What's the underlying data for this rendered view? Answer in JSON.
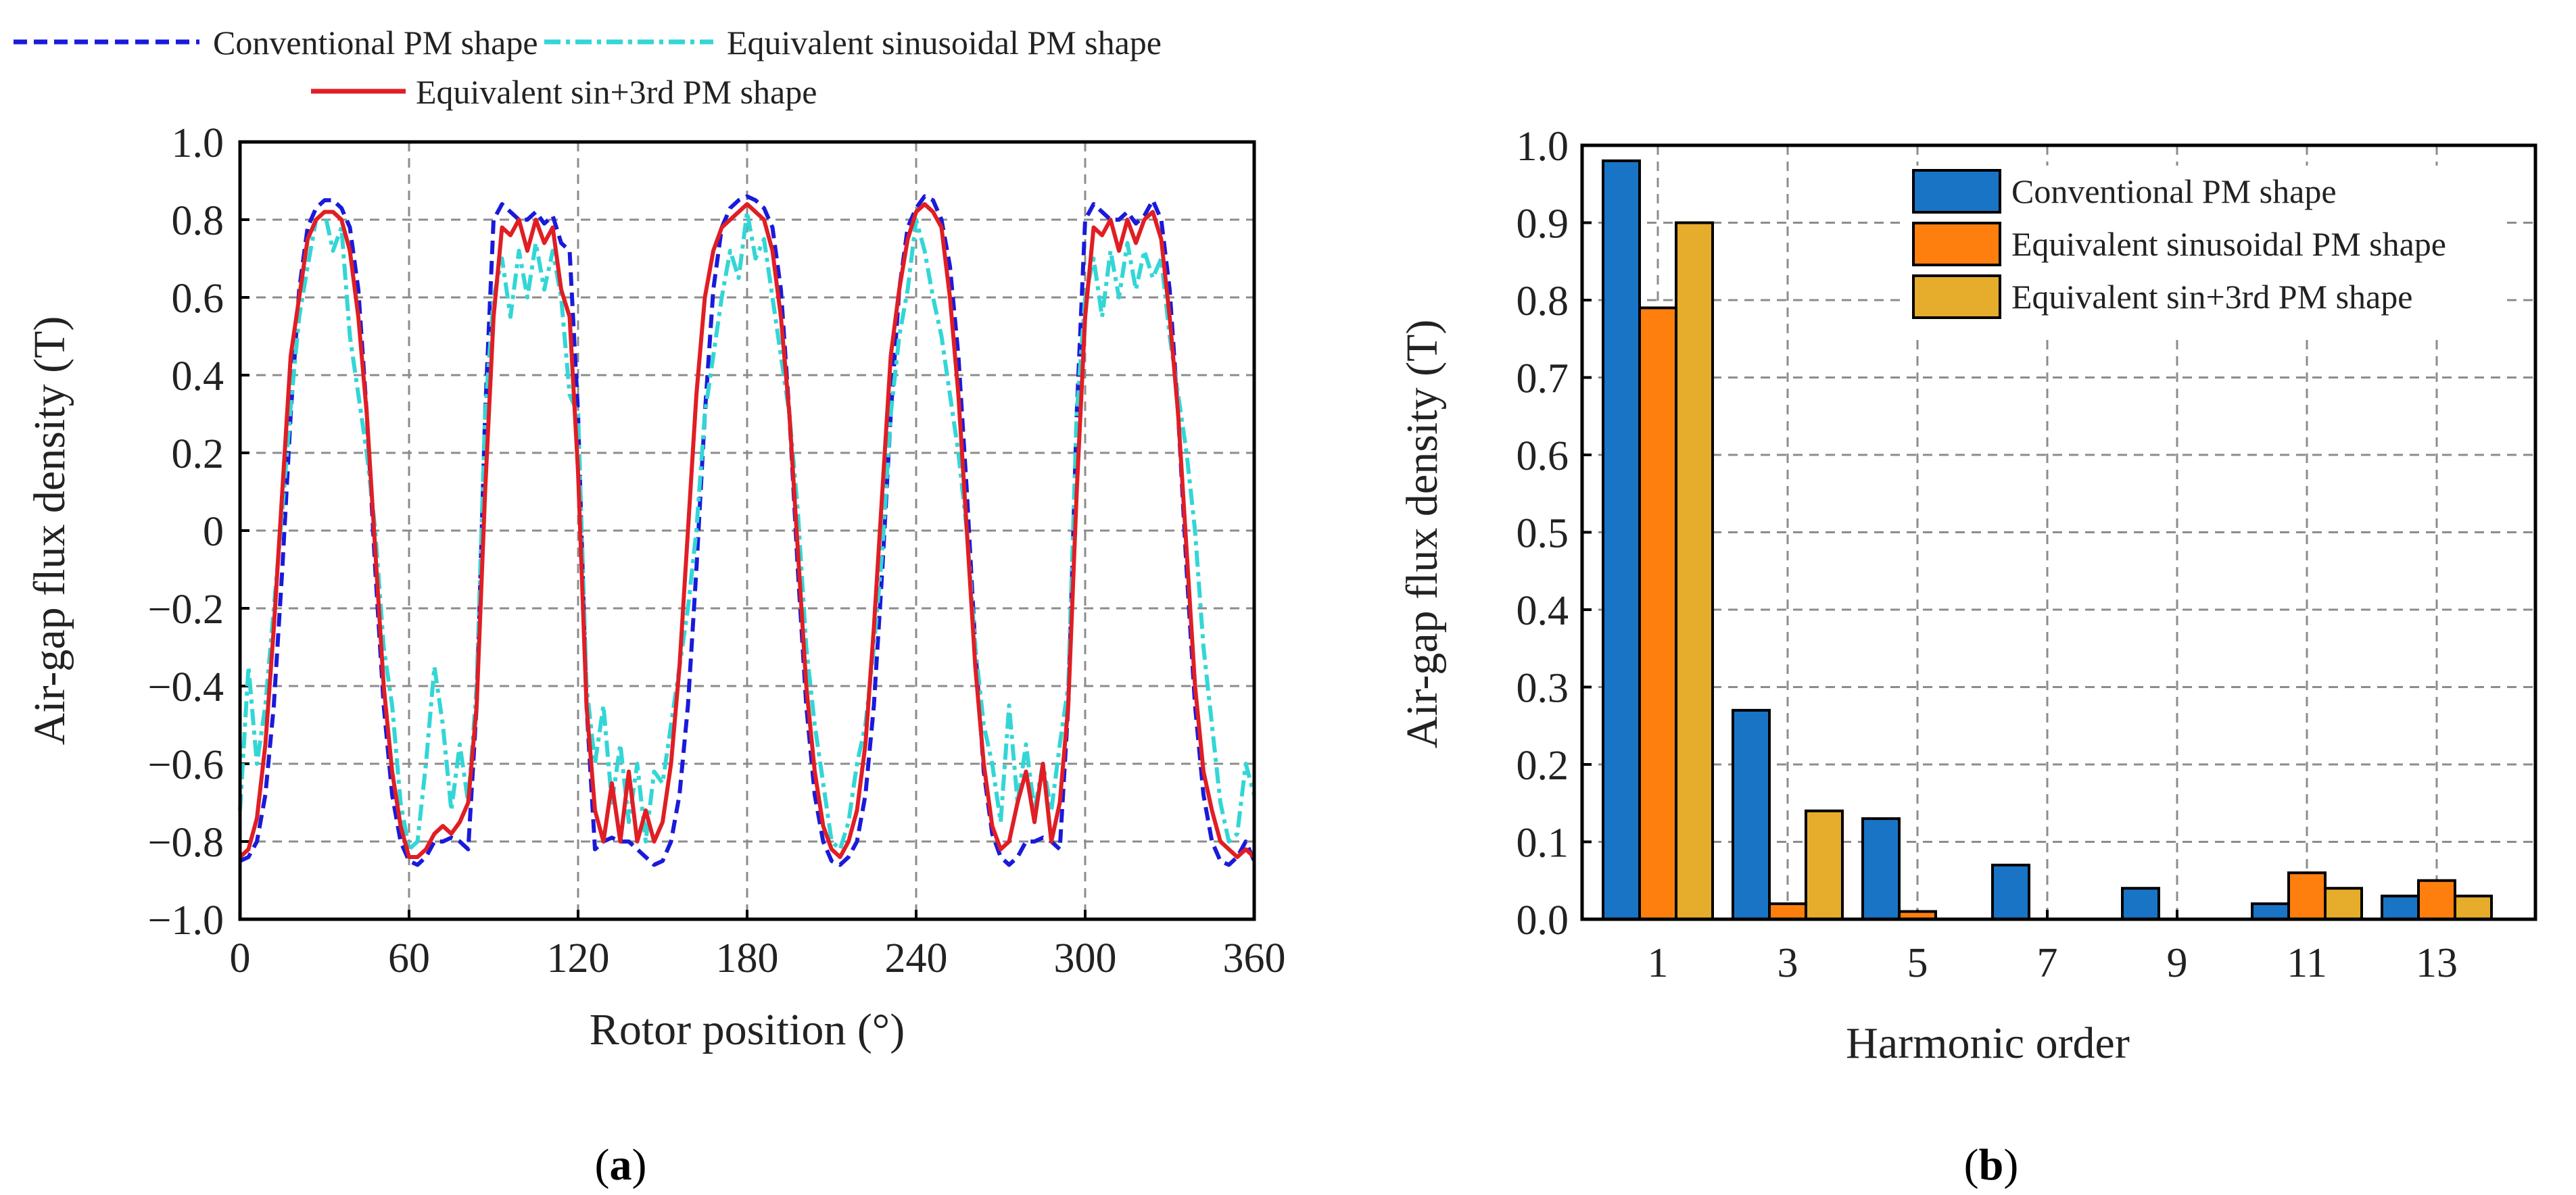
{
  "figure": {
    "panel_a_label": "(a)",
    "panel_b_label": "(b)",
    "panel_a_letter": "a",
    "panel_b_letter": "b"
  },
  "colors": {
    "conventional_a": "#1a1adb",
    "sinusoidal_a": "#33d6d6",
    "sin3rd_a": "#e01e24",
    "conventional_b": "#1a74c6",
    "sinusoidal_b": "#ff7f0e",
    "sin3rd_b": "#e6ac2b",
    "grid": "#8c8c8c"
  },
  "chart_data": [
    {
      "type": "line",
      "title": "",
      "xlabel": "Rotor position (°)",
      "ylabel": "Air-gap flux density (T)",
      "xlim": [
        0,
        360
      ],
      "ylim": [
        -1.0,
        1.0
      ],
      "xticks": [
        0,
        60,
        120,
        180,
        240,
        300,
        360
      ],
      "xtick_labels": [
        "0",
        "60",
        "120",
        "180",
        "240",
        "300",
        "360"
      ],
      "yticks": [
        1.0,
        0.8,
        0.6,
        0.4,
        0.2,
        0,
        -0.2,
        -0.4,
        -0.6,
        -0.8,
        -1.0
      ],
      "ytick_labels": [
        "1.0",
        "0.8",
        "0.6",
        "0.4",
        "0.2",
        "0",
        "−0.2",
        "−0.4",
        "−0.6",
        "−0.8",
        "−1.0"
      ],
      "grid": true,
      "legend_position": "top-outside",
      "series": [
        {
          "name": "Conventional PM shape",
          "style": "dashed",
          "x": [
            0,
            3,
            6,
            9,
            12,
            15,
            18,
            21,
            24,
            27,
            30,
            33,
            36,
            39,
            42,
            45,
            48,
            51,
            54,
            57,
            60,
            63,
            66,
            69,
            72,
            75,
            78,
            81,
            84,
            87,
            90,
            93,
            96,
            99,
            102,
            105,
            108,
            111,
            114,
            117,
            120,
            123,
            126,
            129,
            132,
            135,
            138,
            141,
            144,
            147,
            150,
            153,
            156,
            159,
            162,
            165,
            168,
            171,
            174,
            177,
            180,
            183,
            186,
            189,
            192,
            195,
            198,
            201,
            204,
            207,
            210,
            213,
            216,
            219,
            222,
            225,
            228,
            231,
            234,
            237,
            240,
            243,
            246,
            249,
            252,
            255,
            258,
            261,
            264,
            267,
            270,
            273,
            276,
            279,
            282,
            285,
            288,
            291,
            294,
            297,
            300,
            303,
            306,
            309,
            312,
            315,
            318,
            321,
            324,
            327,
            330,
            333,
            336,
            339,
            342,
            345,
            348,
            351,
            354,
            357,
            360
          ],
          "y": [
            -0.85,
            -0.84,
            -0.8,
            -0.68,
            -0.45,
            -0.1,
            0.3,
            0.62,
            0.78,
            0.83,
            0.85,
            0.85,
            0.83,
            0.78,
            0.62,
            0.3,
            -0.1,
            -0.45,
            -0.68,
            -0.8,
            -0.85,
            -0.86,
            -0.84,
            -0.8,
            -0.8,
            -0.79,
            -0.8,
            -0.82,
            -0.45,
            0.3,
            0.8,
            0.84,
            0.82,
            0.8,
            0.8,
            0.82,
            0.79,
            0.81,
            0.74,
            0.72,
            0.3,
            -0.45,
            -0.82,
            -0.8,
            -0.79,
            -0.8,
            -0.8,
            -0.82,
            -0.84,
            -0.86,
            -0.85,
            -0.8,
            -0.68,
            -0.45,
            -0.1,
            0.3,
            0.62,
            0.78,
            0.83,
            0.85,
            0.86,
            0.85,
            0.83,
            0.78,
            0.62,
            0.3,
            -0.1,
            -0.45,
            -0.68,
            -0.8,
            -0.85,
            -0.86,
            -0.84,
            -0.8,
            -0.68,
            -0.45,
            -0.1,
            0.3,
            0.62,
            0.78,
            0.83,
            0.86,
            0.85,
            0.8,
            0.68,
            0.45,
            0.1,
            -0.3,
            -0.62,
            -0.78,
            -0.84,
            -0.86,
            -0.84,
            -0.8,
            -0.8,
            -0.79,
            -0.8,
            -0.82,
            -0.45,
            0.3,
            0.8,
            0.84,
            0.82,
            0.8,
            0.8,
            0.82,
            0.79,
            0.81,
            0.85,
            0.8,
            0.62,
            0.3,
            -0.1,
            -0.45,
            -0.68,
            -0.8,
            -0.85,
            -0.86,
            -0.84,
            -0.8,
            -0.85
          ]
        },
        {
          "name": "Equivalent sinusoidal PM shape",
          "style": "dash-dot",
          "x": [
            0,
            3,
            6,
            9,
            12,
            15,
            18,
            21,
            24,
            27,
            30,
            33,
            36,
            39,
            42,
            45,
            48,
            51,
            54,
            57,
            60,
            63,
            66,
            69,
            72,
            75,
            78,
            81,
            84,
            87,
            90,
            93,
            96,
            99,
            102,
            105,
            108,
            111,
            114,
            117,
            120,
            123,
            126,
            129,
            132,
            135,
            138,
            141,
            144,
            147,
            150,
            153,
            156,
            159,
            162,
            165,
            168,
            171,
            174,
            177,
            180,
            183,
            186,
            189,
            192,
            195,
            198,
            201,
            204,
            207,
            210,
            213,
            216,
            219,
            222,
            225,
            228,
            231,
            234,
            237,
            240,
            243,
            246,
            249,
            252,
            255,
            258,
            261,
            264,
            267,
            270,
            273,
            276,
            279,
            282,
            285,
            288,
            291,
            294,
            297,
            300,
            303,
            306,
            309,
            312,
            315,
            318,
            321,
            324,
            327,
            330,
            333,
            336,
            339,
            342,
            345,
            348,
            351,
            354,
            357,
            360
          ],
          "y": [
            -0.72,
            -0.35,
            -0.6,
            -0.45,
            -0.2,
            0.05,
            0.32,
            0.55,
            0.68,
            0.8,
            0.82,
            0.72,
            0.78,
            0.5,
            0.35,
            0.2,
            0.0,
            -0.3,
            -0.45,
            -0.7,
            -0.82,
            -0.8,
            -0.6,
            -0.35,
            -0.5,
            -0.72,
            -0.55,
            -0.7,
            -0.4,
            0.3,
            0.6,
            0.7,
            0.55,
            0.72,
            0.6,
            0.74,
            0.62,
            0.72,
            0.6,
            0.35,
            0.3,
            -0.4,
            -0.6,
            -0.45,
            -0.7,
            -0.55,
            -0.75,
            -0.6,
            -0.8,
            -0.62,
            -0.65,
            -0.5,
            -0.35,
            -0.2,
            0.0,
            0.3,
            0.45,
            0.6,
            0.72,
            0.65,
            0.82,
            0.7,
            0.75,
            0.6,
            0.45,
            0.3,
            0.05,
            -0.3,
            -0.5,
            -0.65,
            -0.8,
            -0.82,
            -0.75,
            -0.6,
            -0.5,
            -0.3,
            -0.05,
            0.3,
            0.5,
            0.62,
            0.8,
            0.72,
            0.6,
            0.5,
            0.35,
            0.2,
            0.0,
            -0.3,
            -0.5,
            -0.6,
            -0.75,
            -0.45,
            -0.7,
            -0.55,
            -0.72,
            -0.6,
            -0.72,
            -0.55,
            -0.4,
            0.3,
            0.6,
            0.7,
            0.55,
            0.72,
            0.6,
            0.74,
            0.62,
            0.72,
            0.65,
            0.7,
            0.5,
            0.35,
            0.2,
            0.0,
            -0.3,
            -0.5,
            -0.7,
            -0.8,
            -0.78,
            -0.6,
            -0.68
          ]
        },
        {
          "name": "Equivalent sin+3rd PM shape",
          "style": "solid",
          "x": [
            0,
            3,
            6,
            9,
            12,
            15,
            18,
            21,
            24,
            27,
            30,
            33,
            36,
            39,
            42,
            45,
            48,
            51,
            54,
            57,
            60,
            63,
            66,
            69,
            72,
            75,
            78,
            81,
            84,
            87,
            90,
            93,
            96,
            99,
            102,
            105,
            108,
            111,
            114,
            117,
            120,
            123,
            126,
            129,
            132,
            135,
            138,
            141,
            144,
            147,
            150,
            153,
            156,
            159,
            162,
            165,
            168,
            171,
            174,
            177,
            180,
            183,
            186,
            189,
            192,
            195,
            198,
            201,
            204,
            207,
            210,
            213,
            216,
            219,
            222,
            225,
            228,
            231,
            234,
            237,
            240,
            243,
            246,
            249,
            252,
            255,
            258,
            261,
            264,
            267,
            270,
            273,
            276,
            279,
            282,
            285,
            288,
            291,
            294,
            297,
            300,
            303,
            306,
            309,
            312,
            315,
            318,
            321,
            324,
            327,
            330,
            333,
            336,
            339,
            342,
            345,
            348,
            351,
            354,
            357,
            360
          ],
          "y": [
            -0.84,
            -0.82,
            -0.74,
            -0.55,
            -0.25,
            0.1,
            0.45,
            0.6,
            0.75,
            0.8,
            0.82,
            0.82,
            0.8,
            0.72,
            0.55,
            0.3,
            -0.05,
            -0.4,
            -0.62,
            -0.76,
            -0.84,
            -0.84,
            -0.82,
            -0.78,
            -0.76,
            -0.78,
            -0.75,
            -0.7,
            -0.45,
            0.1,
            0.55,
            0.78,
            0.76,
            0.8,
            0.72,
            0.8,
            0.74,
            0.78,
            0.62,
            0.55,
            0.15,
            -0.45,
            -0.72,
            -0.8,
            -0.65,
            -0.8,
            -0.62,
            -0.8,
            -0.72,
            -0.8,
            -0.75,
            -0.6,
            -0.35,
            0.0,
            0.35,
            0.6,
            0.72,
            0.78,
            0.8,
            0.82,
            0.84,
            0.82,
            0.8,
            0.72,
            0.55,
            0.3,
            -0.05,
            -0.4,
            -0.62,
            -0.76,
            -0.82,
            -0.84,
            -0.8,
            -0.72,
            -0.55,
            -0.25,
            0.1,
            0.45,
            0.62,
            0.75,
            0.82,
            0.84,
            0.82,
            0.78,
            0.6,
            0.35,
            0.0,
            -0.35,
            -0.6,
            -0.76,
            -0.82,
            -0.8,
            -0.7,
            -0.62,
            -0.75,
            -0.6,
            -0.8,
            -0.7,
            -0.45,
            0.1,
            0.55,
            0.78,
            0.76,
            0.8,
            0.72,
            0.8,
            0.74,
            0.8,
            0.82,
            0.75,
            0.55,
            0.3,
            -0.05,
            -0.4,
            -0.62,
            -0.72,
            -0.8,
            -0.82,
            -0.84,
            -0.82,
            -0.84
          ]
        }
      ]
    },
    {
      "type": "bar",
      "title": "",
      "xlabel": "Harmonic order",
      "ylabel": "Air-gap flux density (T)",
      "ylim": [
        0.0,
        1.0
      ],
      "yticks": [
        0.0,
        0.1,
        0.2,
        0.3,
        0.4,
        0.5,
        0.6,
        0.7,
        0.8,
        0.9,
        1.0
      ],
      "ytick_labels": [
        "0.0",
        "0.1",
        "0.2",
        "0.3",
        "0.4",
        "0.5",
        "0.6",
        "0.7",
        "0.8",
        "0.9",
        "1.0"
      ],
      "categories": [
        "1",
        "3",
        "5",
        "7",
        "9",
        "11",
        "13"
      ],
      "grid": true,
      "legend_position": "top-right",
      "series": [
        {
          "name": "Conventional PM shape",
          "values": [
            0.98,
            0.27,
            0.13,
            0.07,
            0.04,
            0.02,
            0.03
          ]
        },
        {
          "name": "Equivalent sinusoidal PM shape",
          "values": [
            0.79,
            0.02,
            0.01,
            0.0,
            0.0,
            0.06,
            0.05
          ]
        },
        {
          "name": "Equivalent sin+3rd PM shape",
          "values": [
            0.9,
            0.14,
            0.0,
            0.0,
            0.0,
            0.04,
            0.03
          ]
        }
      ]
    }
  ]
}
